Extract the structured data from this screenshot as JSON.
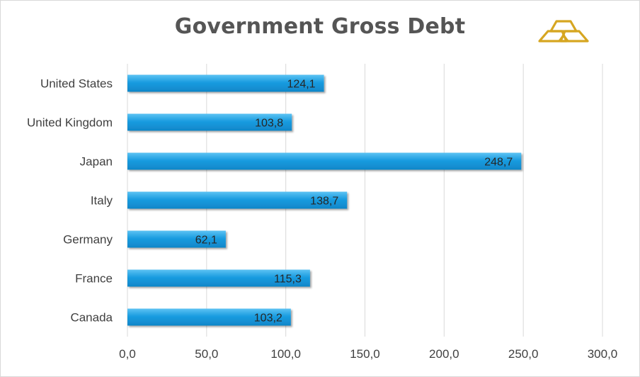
{
  "chart_data": {
    "type": "bar",
    "orientation": "horizontal",
    "title": "Government Gross Debt",
    "categories": [
      "United States",
      "United Kingdom",
      "Japan",
      "Italy",
      "Germany",
      "France",
      "Canada"
    ],
    "values": [
      124.1,
      103.8,
      248.7,
      138.7,
      62.1,
      115.3,
      103.2
    ],
    "value_labels": [
      "124,1",
      "103,8",
      "248,7",
      "138,7",
      "62,1",
      "115,3",
      "103,2"
    ],
    "x_ticks": [
      "0,0",
      "50,0",
      "100,0",
      "150,0",
      "200,0",
      "250,0",
      "300,0"
    ],
    "xlim": [
      0,
      300
    ],
    "grid": "vertical",
    "legend": "none",
    "bar_color": "#1a9ce0",
    "logo_color": "#d6a621"
  }
}
